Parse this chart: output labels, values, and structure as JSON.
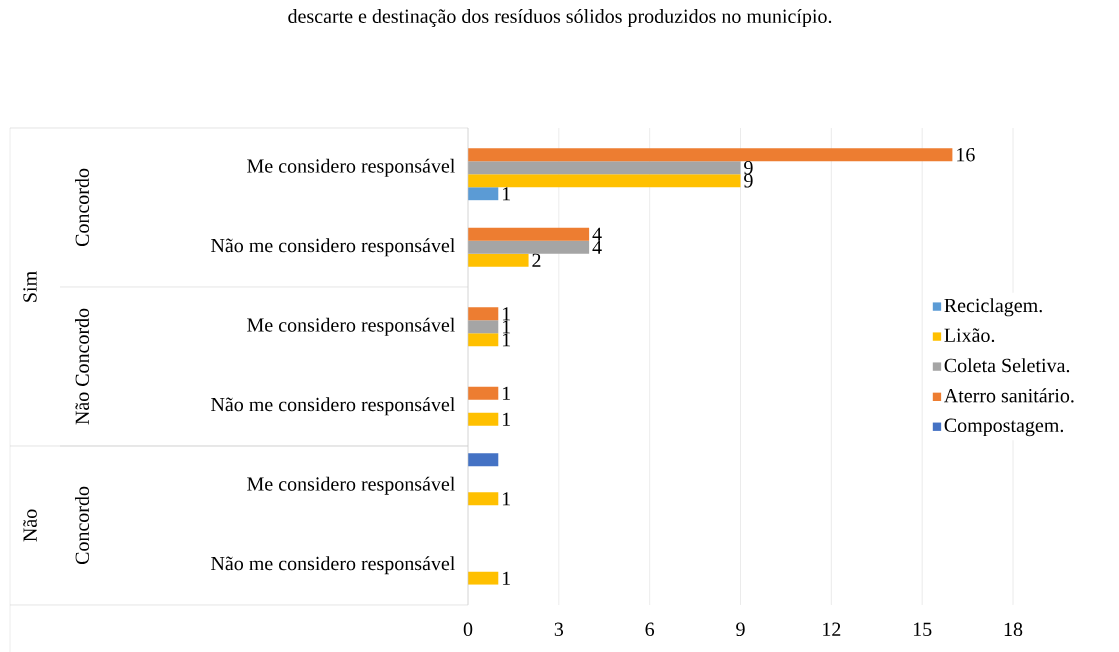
{
  "chart_data": {
    "type": "bar",
    "orientation": "horizontal",
    "title": "descarte e destinação dos resíduos sólidos produzidos no município.",
    "categories": [
      "Me considero responsável",
      "Não me considero responsável",
      "Me considero responsável",
      "Não me considero responsável",
      "Me considero responsável",
      "Não me considero responsável"
    ],
    "series": [
      {
        "name": "Reciclagem.",
        "color": "#5b9bd5",
        "values": [
          1,
          null,
          null,
          null,
          null,
          null
        ],
        "value_labels": [
          "1",
          null,
          null,
          null,
          null,
          null
        ]
      },
      {
        "name": "Lixão.",
        "color": "#ffc000",
        "values": [
          9,
          2,
          1,
          1,
          1,
          1
        ],
        "value_labels": [
          "9",
          "2",
          "1",
          "1",
          "1",
          "1"
        ]
      },
      {
        "name": "Coleta Seletiva.",
        "color": "#a5a5a5",
        "values": [
          9,
          4,
          1,
          null,
          null,
          null
        ],
        "value_labels": [
          "9",
          "4",
          "1",
          null,
          null,
          null
        ]
      },
      {
        "name": "Aterro sanitário.",
        "color": "#ed7d31",
        "values": [
          16,
          4,
          1,
          1,
          null,
          null
        ],
        "value_labels": [
          "16",
          "4",
          "1",
          "1",
          null,
          null
        ]
      },
      {
        "name": "Compostagem.",
        "color": "#4472c4",
        "values": [
          null,
          null,
          null,
          null,
          1,
          null
        ],
        "value_labels": [
          null,
          null,
          null,
          null,
          null,
          null
        ]
      }
    ],
    "annotations": [
      "Sim",
      "Não",
      "Concordo",
      "Não Concordo",
      "Concordo"
    ],
    "xlim": [
      0,
      18
    ],
    "xticks": [
      0,
      3,
      6,
      9,
      12,
      15,
      18
    ],
    "grid": "x",
    "legend": "right"
  }
}
